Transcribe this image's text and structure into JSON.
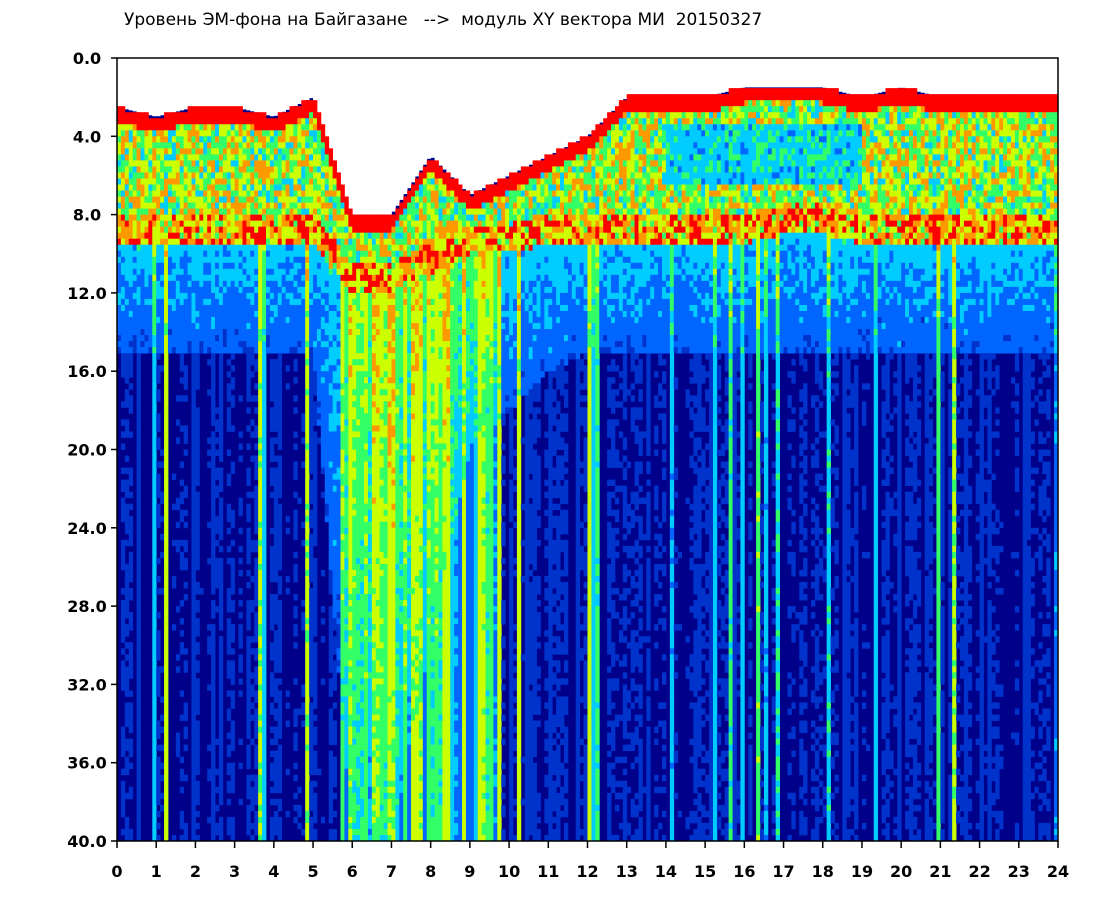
{
  "chart_data": {
    "type": "heatmap",
    "title": "Уровень ЭМ-фона на Байгазане   -->  модуль XY вектора МИ  20150327",
    "xlabel": "",
    "ylabel": "",
    "xlim": [
      0,
      24
    ],
    "ylim": [
      40,
      0
    ],
    "y_inverted": true,
    "grid": false,
    "legend": "none",
    "x_tick_labels": [
      "0",
      "1",
      "2",
      "3",
      "4",
      "5",
      "6",
      "7",
      "8",
      "9",
      "10",
      "11",
      "12",
      "13",
      "14",
      "15",
      "16",
      "17",
      "18",
      "19",
      "20",
      "21",
      "22",
      "23",
      "24"
    ],
    "y_tick_labels": [
      "0.0",
      "4.0",
      "8.0",
      "12.0",
      "16.0",
      "20.0",
      "24.0",
      "28.0",
      "32.0",
      "36.0",
      "40.0"
    ],
    "colormap": [
      "#00008b",
      "#0033cc",
      "#0066ff",
      "#00ccff",
      "#33ff66",
      "#ccff00",
      "#ff9900",
      "#ff0000"
    ],
    "x": [
      0,
      1,
      2,
      3,
      4,
      5,
      6,
      7,
      8,
      9,
      10,
      11,
      12,
      13,
      14,
      15,
      16,
      17,
      18,
      19,
      20,
      21,
      22,
      23
    ],
    "upper_band_top": [
      2.5,
      3,
      2.5,
      2.5,
      3,
      2,
      8,
      8,
      5,
      7,
      6,
      5,
      4,
      2,
      2,
      2,
      1.5,
      1.5,
      1.5,
      2,
      1.5,
      2,
      2,
      2
    ],
    "green_band_bottom": [
      9.5,
      9.5,
      9.5,
      9.5,
      9.5,
      9.5,
      12,
      12,
      11,
      10,
      10,
      9.5,
      9.5,
      9.5,
      9.5,
      9.5,
      9.5,
      9,
      9,
      9.5,
      9.5,
      9.5,
      9.5,
      9.5
    ],
    "noise_bottom": [
      15,
      15,
      15,
      15,
      15,
      15,
      40,
      40,
      30,
      20,
      18,
      16,
      15,
      15,
      15,
      15,
      15,
      15,
      15,
      15,
      15,
      15,
      15,
      15
    ]
  }
}
